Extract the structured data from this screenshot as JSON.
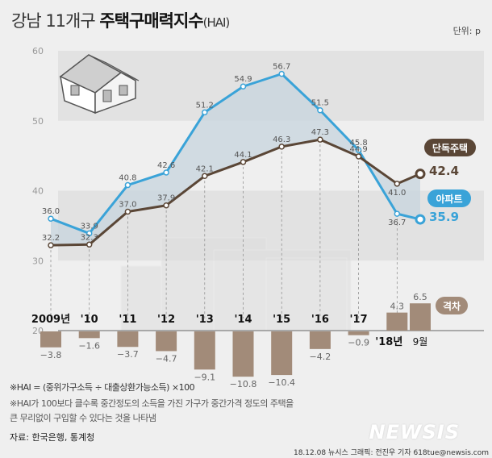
{
  "title": {
    "prefix": "강남 11개구 ",
    "main": "주택구매력지수",
    "suffix": "(HAI)"
  },
  "unit": "단위: p",
  "chart_data": {
    "type": "line",
    "title": "강남 11개구 주택구매력지수(HAI)",
    "ylim": [
      20,
      60
    ],
    "yticks": [
      "60",
      "50",
      "40",
      "30",
      "20"
    ],
    "categories": [
      "2009년",
      "'10",
      "'11",
      "'12",
      "'13",
      "'14",
      "'15",
      "'16",
      "'17",
      "'18년",
      "9월"
    ],
    "series": [
      {
        "name": "아파트",
        "color": "#3aa3d8",
        "values": [
          36.0,
          33.9,
          40.8,
          42.6,
          51.2,
          54.9,
          56.7,
          51.5,
          45.8,
          36.7,
          35.9
        ]
      },
      {
        "name": "단독주택",
        "color": "#5a4636",
        "values": [
          32.2,
          32.3,
          37.0,
          37.9,
          42.1,
          44.1,
          46.3,
          47.3,
          44.9,
          41.0,
          42.4
        ]
      }
    ],
    "gap": {
      "name": "격차",
      "color": "#a28b79",
      "values": [
        -3.8,
        -1.6,
        -3.7,
        -4.7,
        -9.1,
        -10.8,
        -10.4,
        -4.2,
        -0.9,
        4.3,
        6.5
      ]
    },
    "end_labels": {
      "apt": "35.9",
      "det": "42.4"
    }
  },
  "notes": [
    "※HAI = (중위가구소득 ÷ 대출상환가능소득) ×100",
    "※HAI가 100보다 클수록 중간정도의 소득을 가진 가구가 중간가격 정도의 주택을",
    "큰 무리없이 구입할 수 있다는 것을 나타냄"
  ],
  "source": "자료: 한국은행, 통계청",
  "credit": "18.12.08 뉴시스 그래픽: 전진우 기자 618tue@newsis.com",
  "logo": "NEWSIS"
}
